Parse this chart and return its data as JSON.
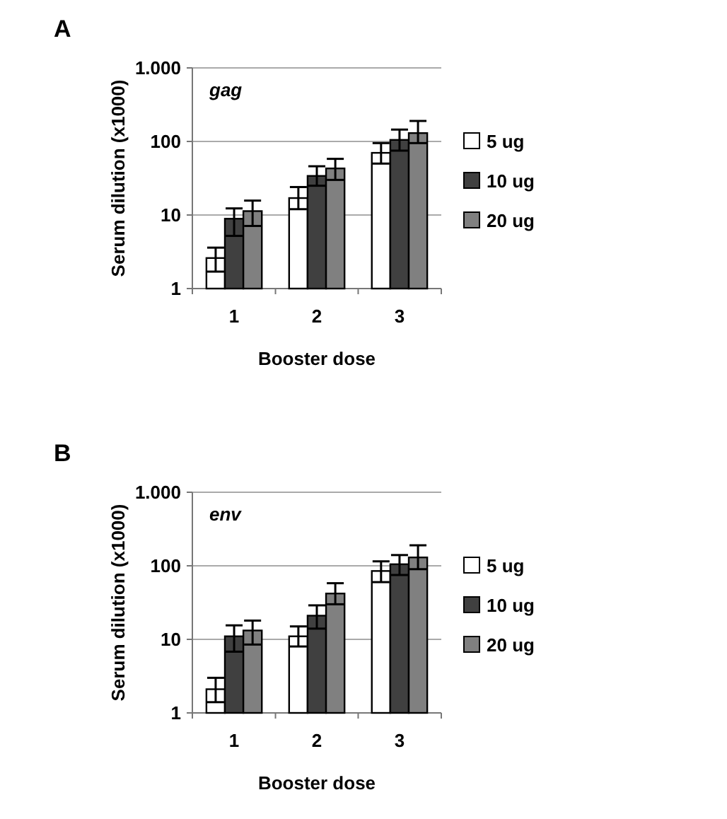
{
  "chart_data": [
    {
      "type": "bar",
      "title": "A",
      "annotations": [
        "gag"
      ],
      "xlabel": "Booster dose",
      "ylabel": "Serum dilution (x1000)",
      "categories": [
        "1",
        "2",
        "3"
      ],
      "log": "y",
      "ylim": [
        1,
        1000
      ],
      "yticks": [
        1,
        10,
        100,
        {
          "value": 1000,
          "label": "1.000"
        }
      ],
      "grid": "y",
      "legend": "right",
      "series": [
        {
          "name": "5 ug",
          "color": "#ffffff",
          "values": [
            2.6,
            17,
            70
          ],
          "errors": [
            [
              1.7,
              3.6
            ],
            [
              12,
              24
            ],
            [
              50,
              95
            ]
          ]
        },
        {
          "name": "10 ug",
          "color": "#404040",
          "values": [
            8.9,
            34,
            105
          ],
          "errors": [
            [
              5.2,
              12.3
            ],
            [
              25,
              46
            ],
            [
              75,
              145
            ]
          ]
        },
        {
          "name": "20 ug",
          "color": "#808080",
          "values": [
            11.3,
            43,
            130
          ],
          "errors": [
            [
              7.1,
              15.7
            ],
            [
              30,
              58
            ],
            [
              95,
              190
            ]
          ]
        }
      ]
    },
    {
      "type": "bar",
      "title": "B",
      "annotations": [
        "env"
      ],
      "xlabel": "Booster dose",
      "ylabel": "Serum dilution (x1000)",
      "categories": [
        "1",
        "2",
        "3"
      ],
      "log": "y",
      "ylim": [
        1,
        1000
      ],
      "yticks": [
        1,
        10,
        100,
        {
          "value": 1000,
          "label": "1.000"
        }
      ],
      "grid": "y",
      "legend": "right",
      "series": [
        {
          "name": "5 ug",
          "color": "#ffffff",
          "values": [
            2.1,
            11,
            85
          ],
          "errors": [
            [
              1.4,
              3
            ],
            [
              8,
              15
            ],
            [
              60,
              115
            ]
          ]
        },
        {
          "name": "10 ug",
          "color": "#404040",
          "values": [
            11,
            21,
            105
          ],
          "errors": [
            [
              6.8,
              15.5
            ],
            [
              14,
              29
            ],
            [
              75,
              140
            ]
          ]
        },
        {
          "name": "20 ug",
          "color": "#808080",
          "values": [
            13.2,
            42,
            130
          ],
          "errors": [
            [
              8.5,
              18
            ],
            [
              30,
              58
            ],
            [
              90,
              190
            ]
          ]
        }
      ]
    }
  ]
}
